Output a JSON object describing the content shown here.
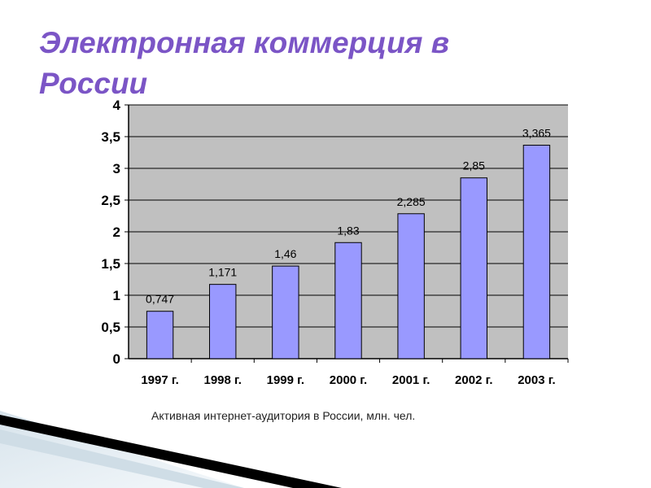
{
  "slide": {
    "title": "Электронная коммерция в России",
    "caption": "Активная интернет-аудитория в России, млн. чел."
  },
  "colors": {
    "title": "#7b55c6",
    "bar_fill": "#9999ff",
    "plot_background": "#c0c0c0",
    "gridline": "#000000"
  },
  "chart_data": {
    "type": "bar",
    "title": "",
    "xlabel": "",
    "ylabel": "",
    "categories": [
      "1997 г.",
      "1998 г.",
      "1999 г.",
      "2000 г.",
      "2001 г.",
      "2002 г.",
      "2003 г."
    ],
    "values": [
      0.747,
      1.171,
      1.46,
      1.83,
      2.285,
      2.85,
      3.365
    ],
    "data_labels": [
      "0,747",
      "1,171",
      "1,46",
      "1,83",
      "2,285",
      "2,85",
      "3,365"
    ],
    "ylim": [
      0,
      4
    ],
    "yticks": [
      0,
      0.5,
      1,
      1.5,
      2,
      2.5,
      3,
      3.5,
      4
    ],
    "ytick_labels": [
      "0",
      "0,5",
      "1",
      "1,5",
      "2",
      "2,5",
      "3",
      "3,5",
      "4"
    ],
    "grid": true,
    "legend": "none"
  }
}
